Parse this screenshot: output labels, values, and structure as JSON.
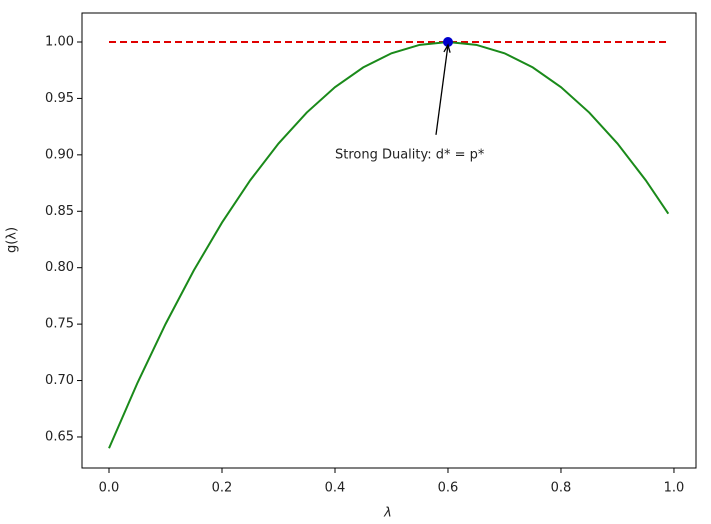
{
  "chart_data": {
    "type": "line",
    "xlabel": "λ",
    "ylabel": "g(λ)",
    "x": [
      0,
      0.05,
      0.1,
      0.15,
      0.2,
      0.25,
      0.3,
      0.35,
      0.4,
      0.45,
      0.5,
      0.55,
      0.6,
      0.65,
      0.7,
      0.75,
      0.8,
      0.85,
      0.9,
      0.95,
      0.99
    ],
    "series": [
      {
        "color": "#1a8a1a",
        "values": [
          0.64,
          0.6975,
          0.75,
          0.7975,
          0.84,
          0.8775,
          0.91,
          0.9375,
          0.96,
          0.9775,
          0.99,
          0.9975,
          1.0,
          0.9975,
          0.99,
          0.9775,
          0.96,
          0.9375,
          0.91,
          0.8775,
          0.8479
        ]
      }
    ],
    "hline": {
      "y": 1.0,
      "xmin": 0,
      "xmax": 0.99,
      "color": "#e00000"
    },
    "point": {
      "x": 0.6,
      "y": 1.0,
      "color": "#0000cc"
    },
    "annotation": {
      "text": "Strong Duality: d* = p*",
      "xy": [
        0.6,
        1.0
      ],
      "xytext": [
        0.4,
        0.9
      ]
    },
    "xlim": [
      -0.0478,
      1.039
    ],
    "ylim": [
      0.6225,
      1.0257
    ],
    "xticks": [
      {
        "value": 0,
        "label": "0.0"
      },
      0.2,
      0.4,
      0.6,
      0.8,
      {
        "value": 1,
        "label": "1.0"
      }
    ],
    "yticks": [
      0.65,
      {
        "value": 0.7,
        "label": "0.70"
      },
      0.75,
      {
        "value": 0.8,
        "label": "0.80"
      },
      0.85,
      {
        "value": 0.9,
        "label": "0.90"
      },
      0.95,
      {
        "value": 1,
        "label": "1.00"
      }
    ]
  }
}
